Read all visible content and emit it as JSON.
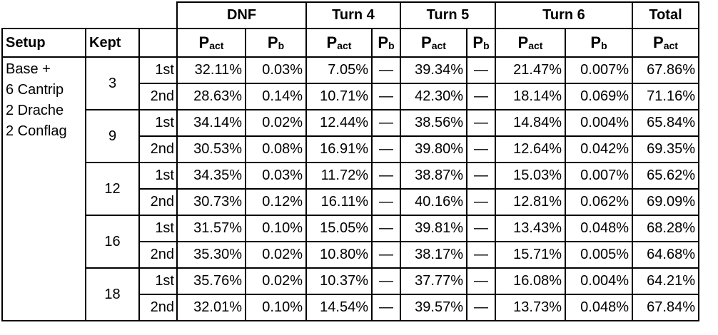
{
  "header_groups": [
    "DNF",
    "Turn 4",
    "Turn 5",
    "Turn 6",
    "Total"
  ],
  "sub_headers": {
    "setup": "Setup",
    "kept": "Kept",
    "p": "P",
    "act_sub": "act",
    "b_sub": "b"
  },
  "setup_lines": [
    "Base +",
    "6 Cantrip",
    "2 Drache",
    "2 Conflag"
  ],
  "groups": [
    {
      "kept": "3",
      "rows": [
        {
          "ord": "1st",
          "dnf_act": "32.11%",
          "dnf_b": "0.03%",
          "t4_act": "7.05%",
          "t4_b": "—",
          "t5_act": "39.34%",
          "t5_b": "—",
          "t6_act": "21.47%",
          "t6_b": "0.007%",
          "total": "67.86%"
        },
        {
          "ord": "2nd",
          "dnf_act": "28.63%",
          "dnf_b": "0.14%",
          "t4_act": "10.71%",
          "t4_b": "—",
          "t5_act": "42.30%",
          "t5_b": "—",
          "t6_act": "18.14%",
          "t6_b": "0.069%",
          "total": "71.16%"
        }
      ]
    },
    {
      "kept": "9",
      "rows": [
        {
          "ord": "1st",
          "dnf_act": "34.14%",
          "dnf_b": "0.02%",
          "t4_act": "12.44%",
          "t4_b": "—",
          "t5_act": "38.56%",
          "t5_b": "—",
          "t6_act": "14.84%",
          "t6_b": "0.004%",
          "total": "65.84%"
        },
        {
          "ord": "2nd",
          "dnf_act": "30.53%",
          "dnf_b": "0.08%",
          "t4_act": "16.91%",
          "t4_b": "—",
          "t5_act": "39.80%",
          "t5_b": "—",
          "t6_act": "12.64%",
          "t6_b": "0.042%",
          "total": "69.35%"
        }
      ]
    },
    {
      "kept": "12",
      "rows": [
        {
          "ord": "1st",
          "dnf_act": "34.35%",
          "dnf_b": "0.03%",
          "t4_act": "11.72%",
          "t4_b": "—",
          "t5_act": "38.87%",
          "t5_b": "—",
          "t6_act": "15.03%",
          "t6_b": "0.007%",
          "total": "65.62%"
        },
        {
          "ord": "2nd",
          "dnf_act": "30.73%",
          "dnf_b": "0.12%",
          "t4_act": "16.11%",
          "t4_b": "—",
          "t5_act": "40.16%",
          "t5_b": "—",
          "t6_act": "12.81%",
          "t6_b": "0.062%",
          "total": "69.09%"
        }
      ]
    },
    {
      "kept": "16",
      "rows": [
        {
          "ord": "1st",
          "dnf_act": "31.57%",
          "dnf_b": "0.10%",
          "t4_act": "15.05%",
          "t4_b": "—",
          "t5_act": "39.81%",
          "t5_b": "—",
          "t6_act": "13.43%",
          "t6_b": "0.048%",
          "total": "68.28%"
        },
        {
          "ord": "2nd",
          "dnf_act": "35.30%",
          "dnf_b": "0.02%",
          "t4_act": "10.80%",
          "t4_b": "—",
          "t5_act": "38.17%",
          "t5_b": "—",
          "t6_act": "15.71%",
          "t6_b": "0.005%",
          "total": "64.68%"
        }
      ]
    },
    {
      "kept": "18",
      "rows": [
        {
          "ord": "1st",
          "dnf_act": "35.76%",
          "dnf_b": "0.02%",
          "t4_act": "10.37%",
          "t4_b": "—",
          "t5_act": "37.77%",
          "t5_b": "—",
          "t6_act": "16.08%",
          "t6_b": "0.004%",
          "total": "64.21%"
        },
        {
          "ord": "2nd",
          "dnf_act": "32.01%",
          "dnf_b": "0.10%",
          "t4_act": "14.54%",
          "t4_b": "—",
          "t5_act": "39.57%",
          "t5_b": "—",
          "t6_act": "13.73%",
          "t6_b": "0.048%",
          "total": "67.84%"
        }
      ]
    }
  ]
}
